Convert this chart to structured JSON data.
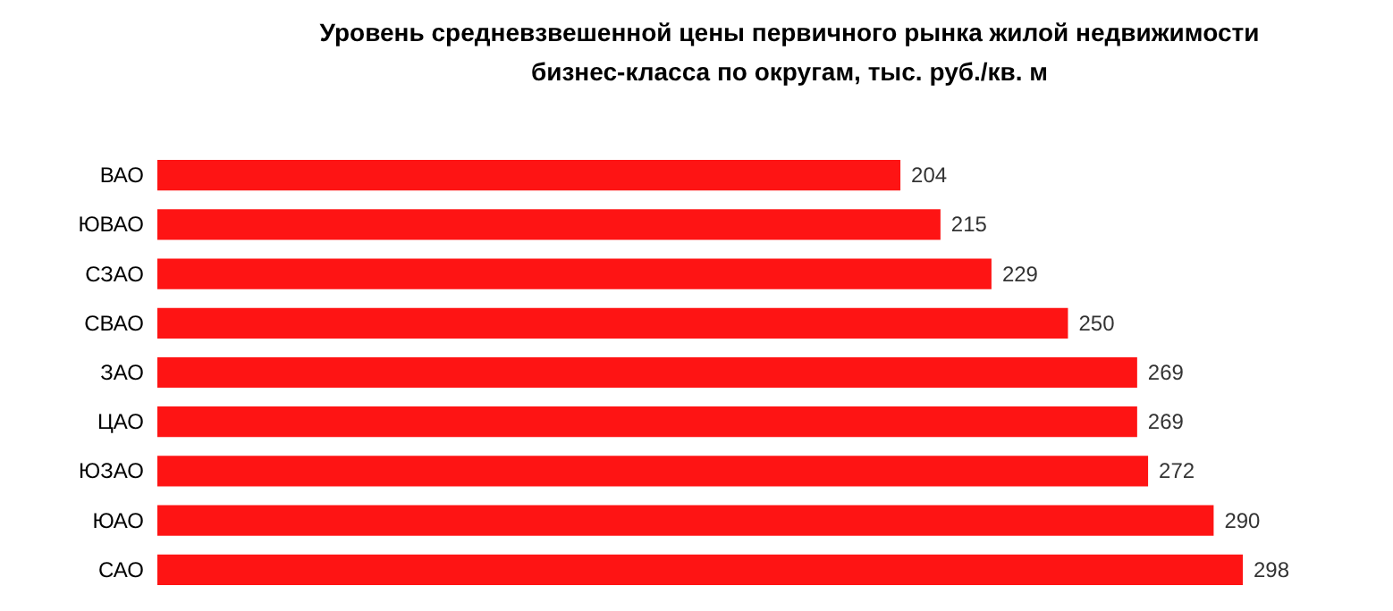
{
  "chart_data": {
    "type": "bar",
    "orientation": "horizontal",
    "title": "Уровень средневзвешенной цены первичного рынка жилой недвижимости бизнес-класса  по округам, тыс. руб./кв. м",
    "categories": [
      "ВАО",
      "ЮВАО",
      "СЗАО",
      "СВАО",
      "ЗАО",
      "ЦАО",
      "ЮЗАО",
      "ЮАО",
      "САО"
    ],
    "values": [
      204,
      215,
      229,
      250,
      269,
      269,
      272,
      290,
      298
    ],
    "color": "#fe1414",
    "data_labels": true
  }
}
